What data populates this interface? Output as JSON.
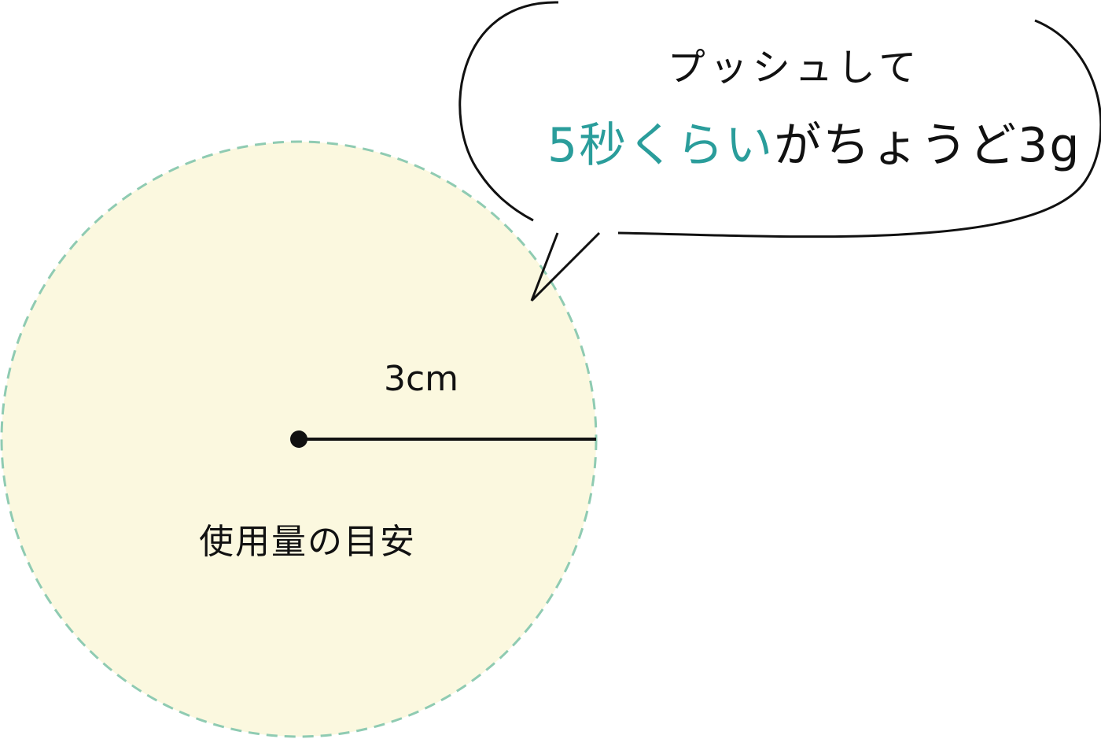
{
  "bubble": {
    "line1": "プッシュして",
    "line2_highlight": "5秒くらい",
    "line2_rest": "がちょうど3g"
  },
  "circle": {
    "radius_label": "3cm",
    "caption": "使用量の目安"
  },
  "colors": {
    "circle_fill": "#fbf8df",
    "circle_border": "#8fcbb2",
    "accent_text": "#2a9d9b",
    "line": "#111111"
  }
}
